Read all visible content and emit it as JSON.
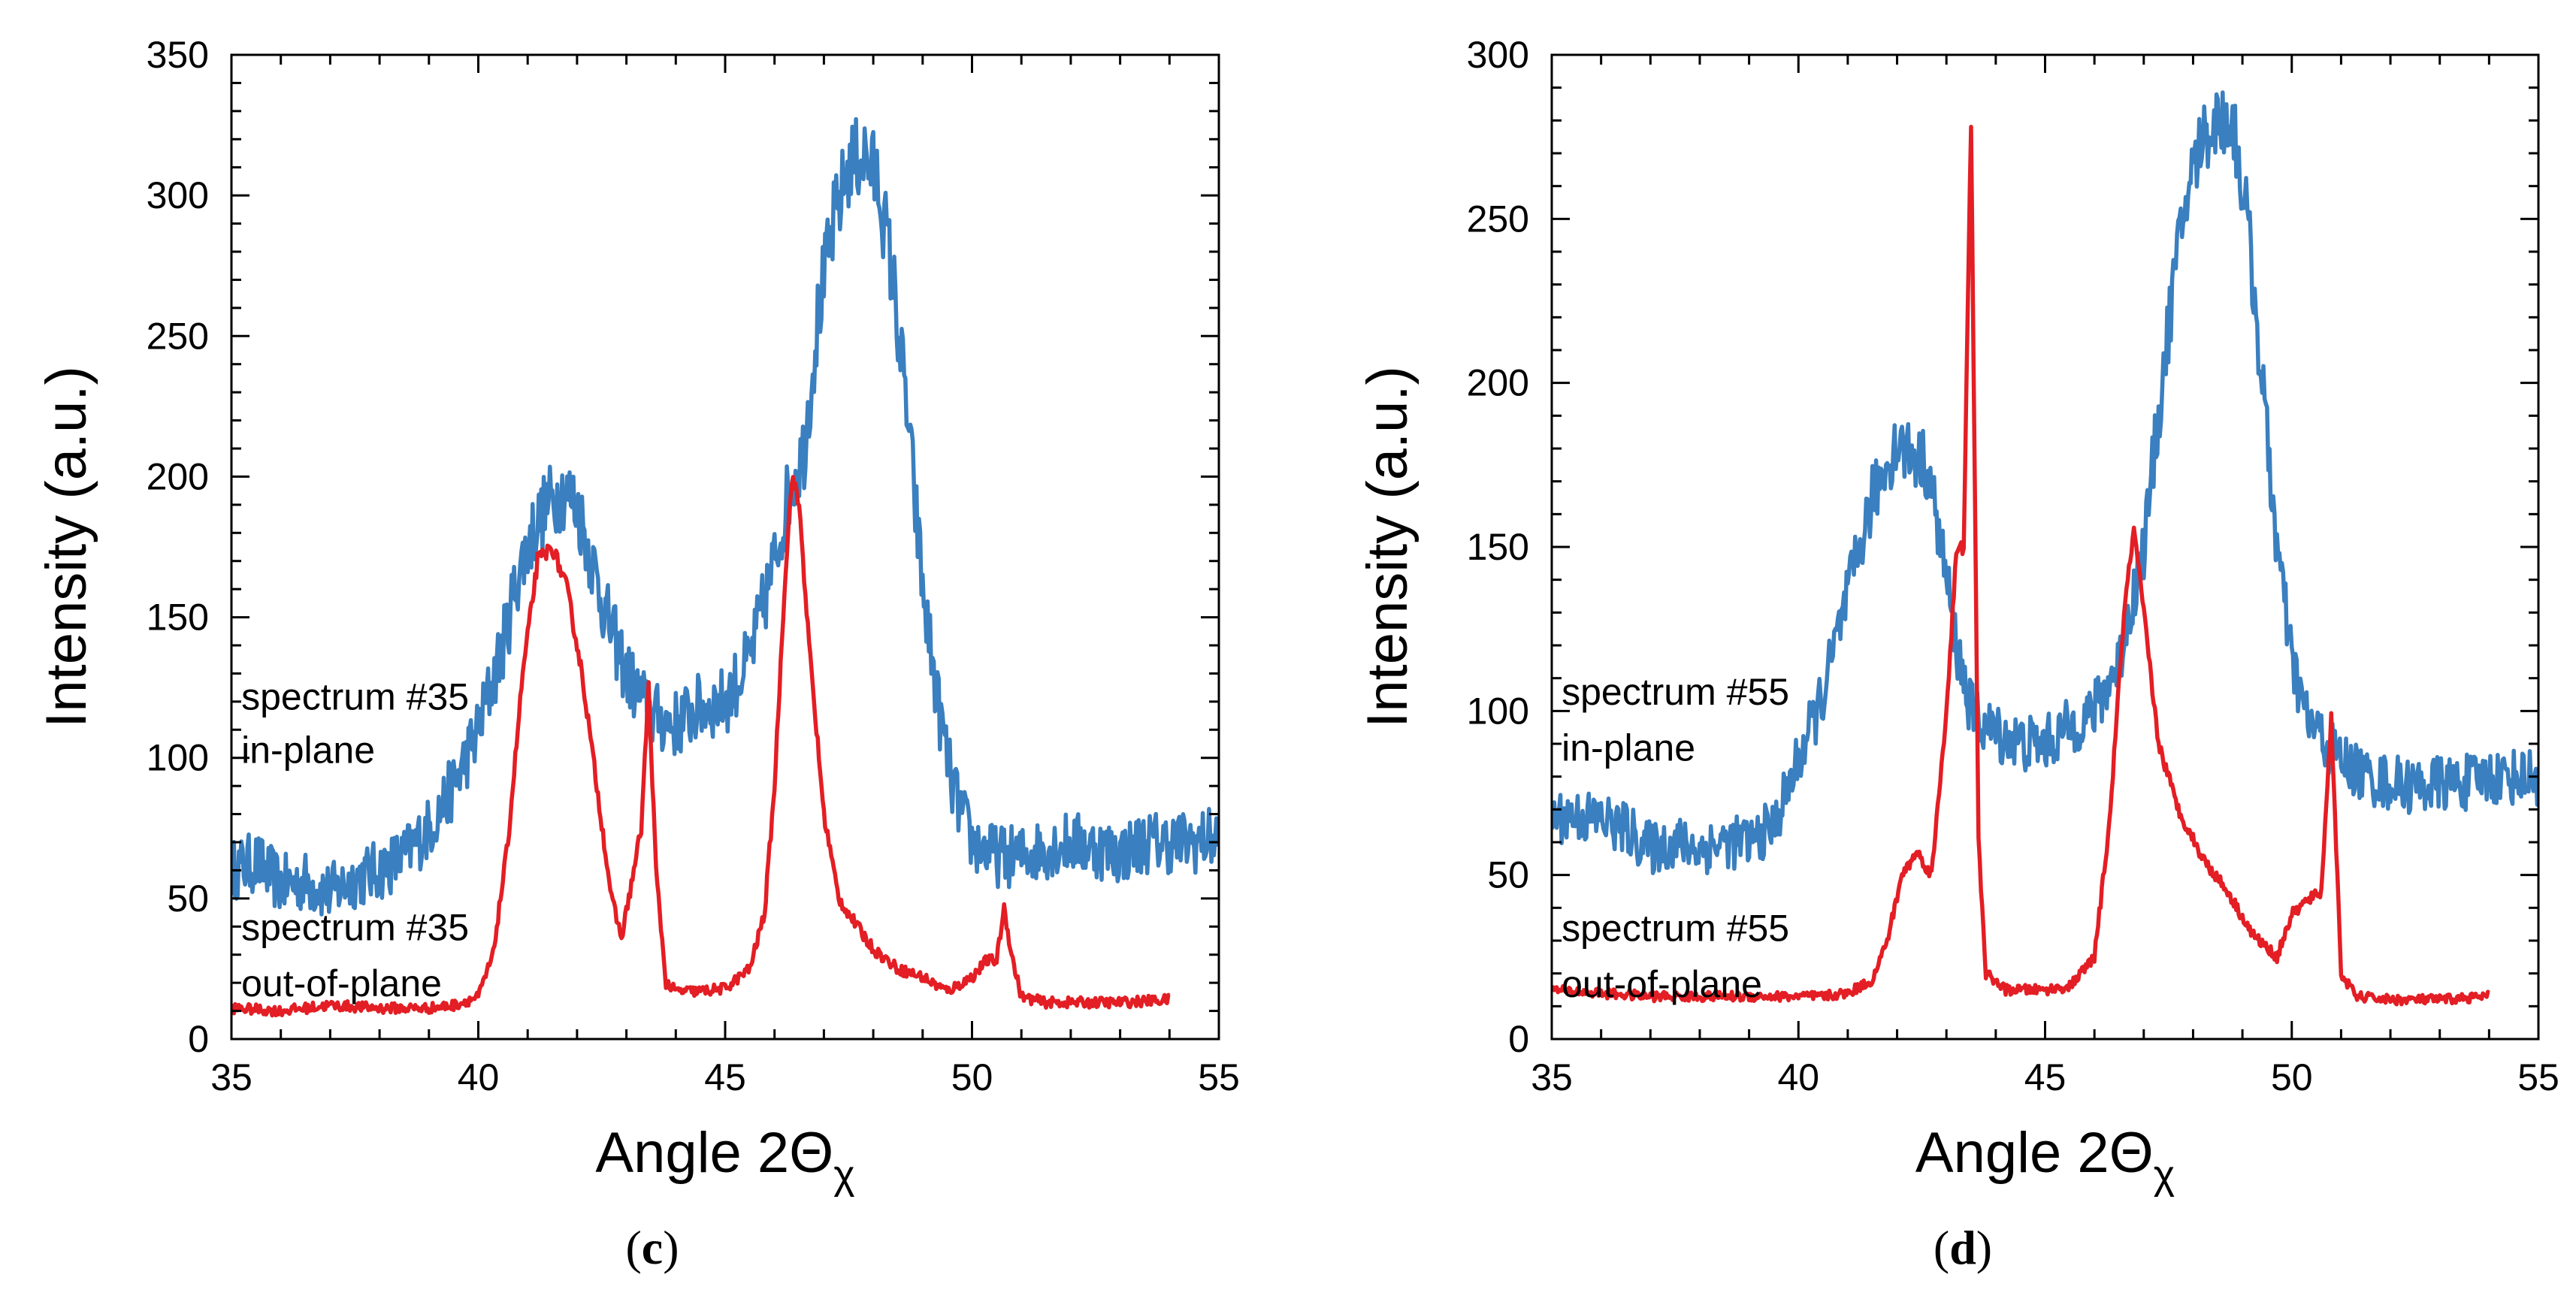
{
  "figure": {
    "panels": [
      "(c)",
      "(d)"
    ]
  },
  "chart_data": [
    {
      "type": "line",
      "panel_label": "(c)",
      "xlabel": "Angle 2Θ",
      "xlabel_subscript": "χ",
      "ylabel": "Intensity (a.u.)",
      "xlim": [
        35,
        55
      ],
      "ylim": [
        0,
        350
      ],
      "xticks": [
        35,
        40,
        45,
        50,
        55
      ],
      "yticks": [
        0,
        50,
        100,
        150,
        200,
        250,
        300,
        350
      ],
      "annotations": [
        {
          "line1": "spectrum #35",
          "line2": "in-plane",
          "x": 35.2,
          "y1": 122,
          "y2": 103
        },
        {
          "line1": "spectrum #35",
          "line2": "out-of-plane",
          "x": 35.2,
          "y1": 40,
          "y2": 20
        }
      ],
      "series": [
        {
          "name": "in-plane",
          "color": "#3a7fbf",
          "x": [
            35,
            35.5,
            36,
            36.5,
            37,
            37.5,
            38,
            38.5,
            39,
            39.5,
            40,
            40.5,
            40.8,
            41.1,
            41.4,
            41.7,
            42,
            42.3,
            42.6,
            43,
            43.5,
            44,
            44.5,
            45,
            45.5,
            46,
            46.3,
            46.6,
            46.9,
            47.2,
            47.5,
            47.8,
            48.1,
            48.4,
            48.7,
            49,
            49.3,
            49.6,
            50,
            50.5,
            51,
            51.5,
            52,
            52.5,
            53,
            53.5,
            54,
            54.5,
            55
          ],
          "values": [
            60,
            63,
            55,
            56,
            52,
            57,
            60,
            65,
            75,
            90,
            110,
            140,
            165,
            180,
            190,
            195,
            190,
            170,
            150,
            130,
            115,
            112,
            118,
            120,
            135,
            170,
            195,
            210,
            260,
            290,
            310,
            315,
            305,
            270,
            220,
            160,
            120,
            90,
            70,
            65,
            65,
            68,
            70,
            68,
            66,
            70,
            70,
            70,
            72
          ],
          "noise": 12
        },
        {
          "name": "out-of-plane",
          "color": "#e31e24",
          "x": [
            35,
            36,
            37,
            38,
            39,
            39.5,
            40,
            40.3,
            40.6,
            40.9,
            41.2,
            41.5,
            41.8,
            42.1,
            42.4,
            42.7,
            42.9,
            43.1,
            43.3,
            43.45,
            43.6,
            43.8,
            44,
            44.5,
            45,
            45.5,
            45.8,
            46.0,
            46.2,
            46.35,
            46.5,
            46.7,
            47,
            47.3,
            47.6,
            48,
            48.5,
            49,
            49.5,
            50,
            50.3,
            50.5,
            50.65,
            50.8,
            51,
            51.5,
            52,
            53,
            54
          ],
          "values": [
            11,
            10,
            12,
            11,
            11,
            12,
            15,
            30,
            70,
            130,
            170,
            175,
            160,
            130,
            90,
            50,
            36,
            55,
            75,
            125,
            60,
            20,
            17,
            17,
            18,
            25,
            45,
            90,
            160,
            200,
            190,
            140,
            80,
            50,
            42,
            32,
            25,
            22,
            17,
            22,
            28,
            28,
            47,
            30,
            15,
            13,
            13,
            13,
            14
          ],
          "noise": 2.5
        }
      ]
    },
    {
      "type": "line",
      "panel_label": "(d)",
      "xlabel": "Angle 2Θ",
      "xlabel_subscript": "χ",
      "ylabel": "Intensity (a.u.)",
      "xlim": [
        35,
        55
      ],
      "ylim": [
        0,
        300
      ],
      "xticks": [
        35,
        40,
        45,
        50,
        55
      ],
      "yticks": [
        0,
        50,
        100,
        150,
        200,
        250,
        300
      ],
      "annotations": [
        {
          "line1": "spectrum #55",
          "line2": "in-plane",
          "x": 35.2,
          "y1": 106,
          "y2": 89
        },
        {
          "line1": "spectrum #55",
          "line2": "out-of-plane",
          "x": 35.2,
          "y1": 34,
          "y2": 17
        }
      ],
      "series": [
        {
          "name": "in-plane",
          "color": "#3a7fbf",
          "x": [
            35,
            35.5,
            36,
            36.5,
            37,
            37.5,
            38,
            38.5,
            39,
            39.5,
            40,
            40.5,
            41,
            41.5,
            42,
            42.3,
            42.6,
            42.9,
            43.2,
            43.5,
            43.8,
            44.2,
            44.6,
            45,
            45.5,
            46,
            46.5,
            47,
            47.3,
            47.6,
            47.9,
            48.2,
            48.5,
            48.8,
            49.1,
            49.4,
            49.7,
            50,
            50.3,
            50.7,
            51,
            51.5,
            52,
            52.5,
            53,
            53.5,
            54,
            54.5,
            55
          ],
          "values": [
            68,
            68,
            67,
            64,
            58,
            60,
            58,
            60,
            60,
            65,
            85,
            105,
            135,
            165,
            182,
            178,
            175,
            150,
            120,
            100,
            95,
            92,
            90,
            90,
            95,
            100,
            115,
            150,
            190,
            230,
            260,
            275,
            280,
            280,
            250,
            200,
            150,
            115,
            98,
            90,
            85,
            80,
            78,
            77,
            78,
            78,
            80,
            80,
            80
          ],
          "noise": 9
        },
        {
          "name": "out-of-plane",
          "color": "#e31e24",
          "x": [
            35,
            36,
            37,
            38,
            39,
            40,
            40.5,
            41,
            41.5,
            41.8,
            42.1,
            42.4,
            42.7,
            43.0,
            43.2,
            43.35,
            43.5,
            43.65,
            43.8,
            44.2,
            45,
            45.5,
            46,
            46.3,
            46.6,
            46.8,
            47,
            47.3,
            47.7,
            48.2,
            48.7,
            49.2,
            49.7,
            50,
            50.3,
            50.6,
            50.8,
            51,
            51.3,
            52,
            53,
            54
          ],
          "values": [
            15,
            14,
            13,
            13,
            13,
            13,
            13,
            14,
            18,
            30,
            50,
            57,
            50,
            100,
            148,
            150,
            280,
            60,
            20,
            15,
            15,
            16,
            25,
            65,
            130,
            155,
            130,
            90,
            70,
            55,
            45,
            32,
            25,
            38,
            42,
            45,
            98,
            20,
            13,
            12,
            12,
            13
          ],
          "noise": 2
        }
      ]
    }
  ]
}
